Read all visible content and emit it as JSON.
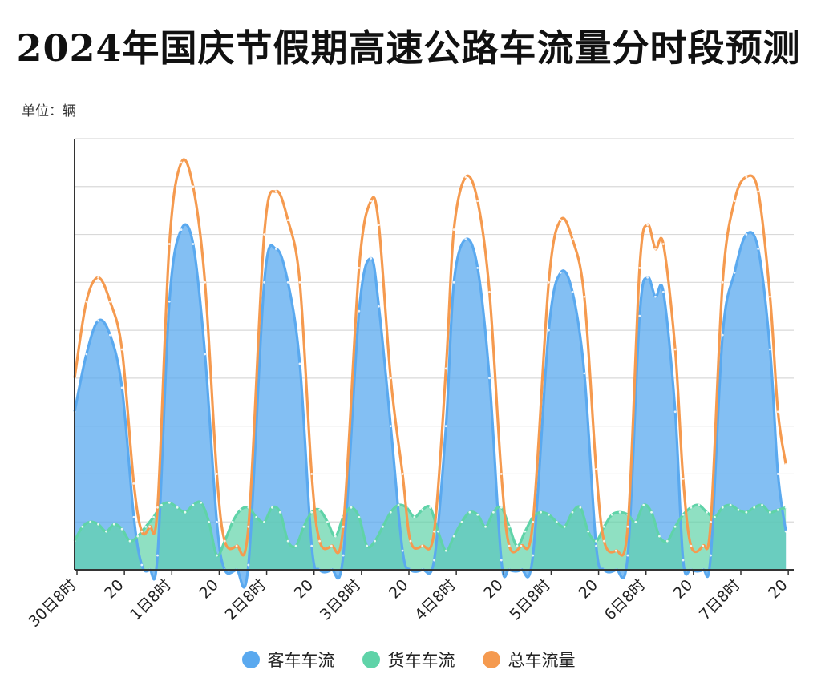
{
  "title": "2024年国庆节假期高速公路车流量分时段预测",
  "unit_label": "单位：辆",
  "colors": {
    "passenger": "#5aa9ef",
    "truck": "#5fd3a8",
    "total": "#f59a4f",
    "grid": "#d9d9d9",
    "axis": "#333333"
  },
  "chart_data": {
    "type": "area",
    "title": "2024年国庆节假期高速公路车流量分时段预测",
    "ylabel": "单位：辆",
    "ylim": [
      0,
      9
    ],
    "grid": true,
    "legend_position": "bottom-center",
    "x_ticks": [
      {
        "x": 0,
        "label": "30日8时"
      },
      {
        "x": 12,
        "label": "20"
      },
      {
        "x": 24,
        "label": "1日8时"
      },
      {
        "x": 36,
        "label": "20"
      },
      {
        "x": 48,
        "label": "2日8时"
      },
      {
        "x": 60,
        "label": "20"
      },
      {
        "x": 72,
        "label": "3日8时"
      },
      {
        "x": 84,
        "label": "20"
      },
      {
        "x": 96,
        "label": "4日8时"
      },
      {
        "x": 108,
        "label": "20"
      },
      {
        "x": 120,
        "label": "5日8时"
      },
      {
        "x": 132,
        "label": "20"
      },
      {
        "x": 144,
        "label": "6日8时"
      },
      {
        "x": 156,
        "label": "20"
      },
      {
        "x": 168,
        "label": "7日8时"
      },
      {
        "x": 180,
        "label": "20"
      }
    ],
    "series": [
      {
        "name": "客车车流",
        "points": [
          [
            0,
            3.3
          ],
          [
            3,
            4.5
          ],
          [
            6,
            5.2
          ],
          [
            9,
            4.9
          ],
          [
            12,
            3.8
          ],
          [
            15,
            1.1
          ],
          [
            17,
            0.1
          ],
          [
            19,
            0
          ],
          [
            21,
            0.3
          ],
          [
            24,
            5.6
          ],
          [
            27,
            7.1
          ],
          [
            30,
            6.8
          ],
          [
            33,
            4.5
          ],
          [
            36,
            1.0
          ],
          [
            38,
            0
          ],
          [
            41,
            0
          ],
          [
            44,
            0.1
          ],
          [
            48,
            6.0
          ],
          [
            51,
            6.7
          ],
          [
            54,
            6.0
          ],
          [
            57,
            4.3
          ],
          [
            60,
            0.5
          ],
          [
            62,
            0
          ],
          [
            65,
            0
          ],
          [
            68,
            0.3
          ],
          [
            72,
            5.4
          ],
          [
            75,
            6.5
          ],
          [
            77,
            5.5
          ],
          [
            80,
            3.0
          ],
          [
            83,
            0.4
          ],
          [
            85,
            0
          ],
          [
            88,
            0
          ],
          [
            91,
            0.2
          ],
          [
            94,
            3.0
          ],
          [
            96,
            6.0
          ],
          [
            99,
            6.9
          ],
          [
            102,
            6.3
          ],
          [
            105,
            4.0
          ],
          [
            108,
            0.2
          ],
          [
            110,
            0
          ],
          [
            113,
            0
          ],
          [
            116,
            0.3
          ],
          [
            120,
            5.0
          ],
          [
            123,
            6.2
          ],
          [
            126,
            5.8
          ],
          [
            129,
            4.1
          ],
          [
            132,
            0.5
          ],
          [
            134,
            0
          ],
          [
            137,
            0
          ],
          [
            140,
            0.3
          ],
          [
            143,
            5.3
          ],
          [
            145,
            6.1
          ],
          [
            147,
            5.7
          ],
          [
            149,
            5.8
          ],
          [
            152,
            3.3
          ],
          [
            154,
            0.2
          ],
          [
            156,
            0
          ],
          [
            159,
            0
          ],
          [
            161,
            0.3
          ],
          [
            164,
            4.9
          ],
          [
            167,
            6.2
          ],
          [
            170,
            7.0
          ],
          [
            173,
            6.7
          ],
          [
            176,
            4.6
          ],
          [
            178,
            2.0
          ],
          [
            180,
            0.8
          ]
        ]
      },
      {
        "name": "货车车流",
        "points": [
          [
            0,
            0.6
          ],
          [
            2,
            0.9
          ],
          [
            4,
            1.0
          ],
          [
            6,
            0.95
          ],
          [
            8,
            0.8
          ],
          [
            10,
            0.95
          ],
          [
            12,
            0.85
          ],
          [
            14,
            0.6
          ],
          [
            16,
            0.7
          ],
          [
            18,
            0.9
          ],
          [
            20,
            1.1
          ],
          [
            22,
            1.35
          ],
          [
            24,
            1.4
          ],
          [
            26,
            1.3
          ],
          [
            28,
            1.2
          ],
          [
            30,
            1.35
          ],
          [
            32,
            1.4
          ],
          [
            34,
            1.0
          ],
          [
            36,
            0.3
          ],
          [
            38,
            0.6
          ],
          [
            40,
            1.0
          ],
          [
            42,
            1.25
          ],
          [
            44,
            1.3
          ],
          [
            46,
            1.1
          ],
          [
            48,
            1.0
          ],
          [
            50,
            1.3
          ],
          [
            52,
            1.2
          ],
          [
            54,
            0.6
          ],
          [
            56,
            0.5
          ],
          [
            58,
            0.9
          ],
          [
            60,
            1.2
          ],
          [
            62,
            1.25
          ],
          [
            64,
            1.0
          ],
          [
            66,
            0.7
          ],
          [
            68,
            1.1
          ],
          [
            70,
            1.3
          ],
          [
            72,
            1.1
          ],
          [
            74,
            0.5
          ],
          [
            76,
            0.6
          ],
          [
            78,
            0.9
          ],
          [
            80,
            1.2
          ],
          [
            82,
            1.35
          ],
          [
            84,
            1.3
          ],
          [
            86,
            1.1
          ],
          [
            88,
            1.25
          ],
          [
            90,
            1.3
          ],
          [
            92,
            0.8
          ],
          [
            94,
            0.4
          ],
          [
            96,
            0.7
          ],
          [
            98,
            1.0
          ],
          [
            100,
            1.2
          ],
          [
            102,
            1.15
          ],
          [
            104,
            0.9
          ],
          [
            106,
            1.2
          ],
          [
            108,
            1.3
          ],
          [
            110,
            0.9
          ],
          [
            112,
            0.5
          ],
          [
            114,
            0.8
          ],
          [
            116,
            1.1
          ],
          [
            118,
            1.2
          ],
          [
            120,
            1.15
          ],
          [
            122,
            1.0
          ],
          [
            124,
            0.9
          ],
          [
            126,
            1.2
          ],
          [
            128,
            1.3
          ],
          [
            130,
            0.8
          ],
          [
            132,
            0.6
          ],
          [
            134,
            0.9
          ],
          [
            136,
            1.15
          ],
          [
            138,
            1.2
          ],
          [
            140,
            1.15
          ],
          [
            142,
            1.0
          ],
          [
            144,
            1.35
          ],
          [
            146,
            1.2
          ],
          [
            148,
            0.7
          ],
          [
            150,
            0.6
          ],
          [
            152,
            0.9
          ],
          [
            154,
            1.15
          ],
          [
            156,
            1.3
          ],
          [
            158,
            1.35
          ],
          [
            160,
            1.2
          ],
          [
            162,
            1.1
          ],
          [
            164,
            1.3
          ],
          [
            166,
            1.35
          ],
          [
            168,
            1.25
          ],
          [
            170,
            1.2
          ],
          [
            172,
            1.3
          ],
          [
            174,
            1.35
          ],
          [
            176,
            1.2
          ],
          [
            178,
            1.25
          ],
          [
            180,
            1.3
          ]
        ]
      },
      {
        "name": "总车流量",
        "points": [
          [
            0,
            4.0
          ],
          [
            3,
            5.6
          ],
          [
            6,
            6.1
          ],
          [
            9,
            5.6
          ],
          [
            12,
            4.6
          ],
          [
            15,
            1.8
          ],
          [
            17,
            0.8
          ],
          [
            19,
            0.9
          ],
          [
            21,
            1.3
          ],
          [
            24,
            6.8
          ],
          [
            27,
            8.5
          ],
          [
            30,
            8.0
          ],
          [
            33,
            6.0
          ],
          [
            36,
            2.0
          ],
          [
            38,
            0.6
          ],
          [
            41,
            0.5
          ],
          [
            44,
            0.9
          ],
          [
            48,
            7.0
          ],
          [
            51,
            7.9
          ],
          [
            54,
            7.3
          ],
          [
            57,
            6.0
          ],
          [
            60,
            2.0
          ],
          [
            62,
            0.6
          ],
          [
            65,
            0.5
          ],
          [
            68,
            0.9
          ],
          [
            72,
            6.3
          ],
          [
            75,
            7.7
          ],
          [
            77,
            7.2
          ],
          [
            80,
            4.0
          ],
          [
            83,
            2.0
          ],
          [
            85,
            0.6
          ],
          [
            88,
            0.5
          ],
          [
            91,
            0.8
          ],
          [
            94,
            4.2
          ],
          [
            96,
            7.1
          ],
          [
            99,
            8.2
          ],
          [
            102,
            7.7
          ],
          [
            105,
            5.8
          ],
          [
            108,
            2.0
          ],
          [
            110,
            0.5
          ],
          [
            113,
            0.5
          ],
          [
            116,
            1.0
          ],
          [
            120,
            6.0
          ],
          [
            123,
            7.3
          ],
          [
            126,
            6.9
          ],
          [
            129,
            5.7
          ],
          [
            132,
            2.1
          ],
          [
            134,
            0.6
          ],
          [
            137,
            0.4
          ],
          [
            140,
            0.9
          ],
          [
            143,
            6.3
          ],
          [
            145,
            7.2
          ],
          [
            147,
            6.7
          ],
          [
            149,
            6.8
          ],
          [
            152,
            4.6
          ],
          [
            154,
            1.9
          ],
          [
            156,
            0.5
          ],
          [
            159,
            0.5
          ],
          [
            161,
            1.0
          ],
          [
            164,
            6.0
          ],
          [
            167,
            7.7
          ],
          [
            170,
            8.2
          ],
          [
            173,
            7.9
          ],
          [
            176,
            5.7
          ],
          [
            178,
            3.3
          ],
          [
            180,
            2.2
          ]
        ]
      }
    ]
  },
  "legend": [
    {
      "key": "passenger",
      "label": "客车车流"
    },
    {
      "key": "truck",
      "label": "货车车流"
    },
    {
      "key": "total",
      "label": "总车流量"
    }
  ]
}
